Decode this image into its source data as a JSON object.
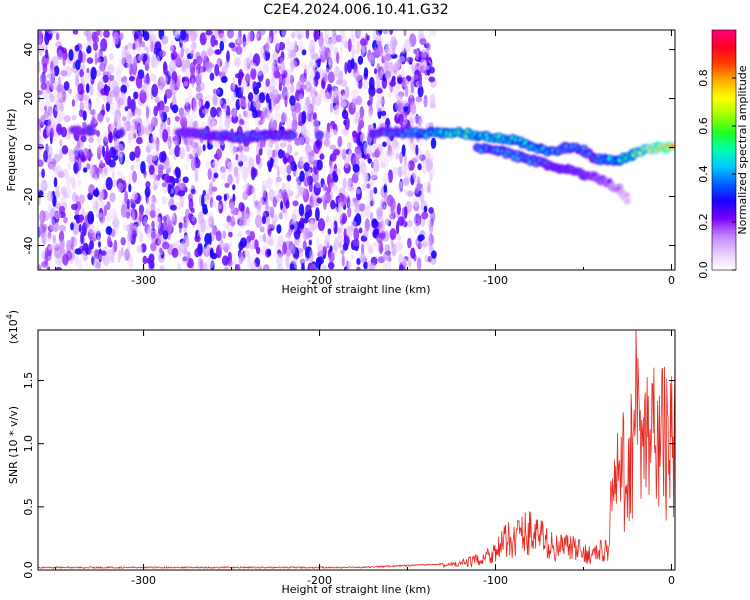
{
  "figure": {
    "title": "C2E4.2024.006.10.41.G32"
  },
  "chart_data": [
    {
      "type": "heatmap",
      "xlabel": "Height of straight line (km)",
      "ylabel": "Frequency (Hz)",
      "xlim": [
        -360,
        2
      ],
      "ylim": [
        -50,
        48
      ],
      "xticks": [
        -300,
        -200,
        -100,
        0
      ],
      "yticks": [
        -40,
        -20,
        0,
        20,
        40
      ],
      "grid": false,
      "colorbar": {
        "label": "Normalized spectral amplitude",
        "range": [
          0.0,
          1.0
        ],
        "ticks": [
          0.0,
          0.2,
          0.4,
          0.6,
          0.8
        ],
        "tick_labels": [
          "0.0",
          "0.2",
          "0.4",
          "0.6",
          "0.8"
        ],
        "colormap": [
          "#ffffff",
          "#e6c8ff",
          "#c080ff",
          "#7a00ff",
          "#1a00ff",
          "#0060ff",
          "#00c8ff",
          "#00ffb0",
          "#20ff20",
          "#a0ff00",
          "#ffff00",
          "#ffb000",
          "#ff4000",
          "#ff0020",
          "#ff0080"
        ]
      },
      "noise_region": {
        "x_from": -360,
        "x_to": -135,
        "amplitude_range": [
          0.05,
          0.3
        ]
      },
      "main_track": [
        {
          "x": -340,
          "y": 7,
          "a": 0.33
        },
        {
          "x": -330,
          "y": 7,
          "a": 0.35
        },
        {
          "x": -280,
          "y": 6,
          "a": 0.34
        },
        {
          "x": -270,
          "y": 6,
          "a": 0.36
        },
        {
          "x": -245,
          "y": 4,
          "a": 0.42
        },
        {
          "x": -230,
          "y": 5,
          "a": 0.4
        },
        {
          "x": -215,
          "y": 5,
          "a": 0.38
        },
        {
          "x": -170,
          "y": 6,
          "a": 0.38
        },
        {
          "x": -150,
          "y": 6,
          "a": 0.45
        },
        {
          "x": -130,
          "y": 6,
          "a": 0.55
        },
        {
          "x": -120,
          "y": 6,
          "a": 0.65
        },
        {
          "x": -110,
          "y": 5,
          "a": 0.62
        },
        {
          "x": -100,
          "y": 4,
          "a": 0.6
        },
        {
          "x": -90,
          "y": 3,
          "a": 0.55
        },
        {
          "x": -80,
          "y": 1,
          "a": 0.55
        },
        {
          "x": -70,
          "y": -2,
          "a": 0.5
        },
        {
          "x": -60,
          "y": 0,
          "a": 0.45
        },
        {
          "x": -50,
          "y": -1,
          "a": 0.45
        },
        {
          "x": -45,
          "y": -4,
          "a": 0.4
        },
        {
          "x": -38,
          "y": -5,
          "a": 0.5
        },
        {
          "x": -30,
          "y": -5,
          "a": 0.55
        },
        {
          "x": -22,
          "y": -3,
          "a": 0.65
        },
        {
          "x": -15,
          "y": -1,
          "a": 0.75
        },
        {
          "x": -8,
          "y": 0,
          "a": 0.85
        },
        {
          "x": 0,
          "y": 0,
          "a": 0.9
        }
      ],
      "lower_branch": [
        {
          "x": -110,
          "y": 0,
          "a": 0.45
        },
        {
          "x": -100,
          "y": -1,
          "a": 0.45
        },
        {
          "x": -90,
          "y": -3,
          "a": 0.45
        },
        {
          "x": -80,
          "y": -5,
          "a": 0.45
        },
        {
          "x": -70,
          "y": -7,
          "a": 0.4
        },
        {
          "x": -60,
          "y": -9,
          "a": 0.38
        },
        {
          "x": -50,
          "y": -11,
          "a": 0.35
        },
        {
          "x": -40,
          "y": -13,
          "a": 0.3
        },
        {
          "x": -30,
          "y": -17,
          "a": 0.2
        },
        {
          "x": -25,
          "y": -21,
          "a": 0.1
        }
      ]
    },
    {
      "type": "line",
      "xlabel": "Height of straight line (km)",
      "ylabel": "SNR (10 * v/v)",
      "yscale_note": "(x10",
      "yscale_exp": "4",
      "xlim": [
        -360,
        2
      ],
      "ylim": [
        0,
        1.9
      ],
      "xticks": [
        -300,
        -200,
        -100,
        0
      ],
      "yticks": [
        0.0,
        0.5,
        1.0,
        1.5
      ],
      "ytick_labels": [
        "0.0",
        "0.5",
        "1.0",
        "1.5"
      ],
      "grid": false,
      "series": [
        {
          "color": "#e8271f",
          "x": [
            -360,
            -340,
            -320,
            -300,
            -280,
            -260,
            -240,
            -220,
            -200,
            -180,
            -160,
            -140,
            -130,
            -120,
            -110,
            -100,
            -95,
            -90,
            -85,
            -80,
            -75,
            -70,
            -65,
            -60,
            -55,
            -50,
            -45,
            -40,
            -36,
            -34,
            -32,
            -30,
            -28,
            -26,
            -24,
            -22,
            -20,
            -18,
            -16,
            -14,
            -12,
            -10,
            -8,
            -6,
            -4,
            -2,
            0,
            2
          ],
          "y": [
            0.02,
            0.02,
            0.02,
            0.02,
            0.02,
            0.02,
            0.02,
            0.02,
            0.02,
            0.02,
            0.03,
            0.04,
            0.05,
            0.07,
            0.12,
            0.22,
            0.32,
            0.38,
            0.42,
            0.45,
            0.4,
            0.3,
            0.25,
            0.28,
            0.24,
            0.2,
            0.18,
            0.22,
            0.24,
            0.9,
            0.9,
            1.1,
            1.2,
            1.0,
            1.3,
            1.5,
            1.85,
            1.35,
            1.3,
            1.55,
            1.45,
            1.6,
            1.4,
            1.7,
            1.5,
            1.4,
            1.5,
            1.45
          ]
        }
      ]
    }
  ]
}
